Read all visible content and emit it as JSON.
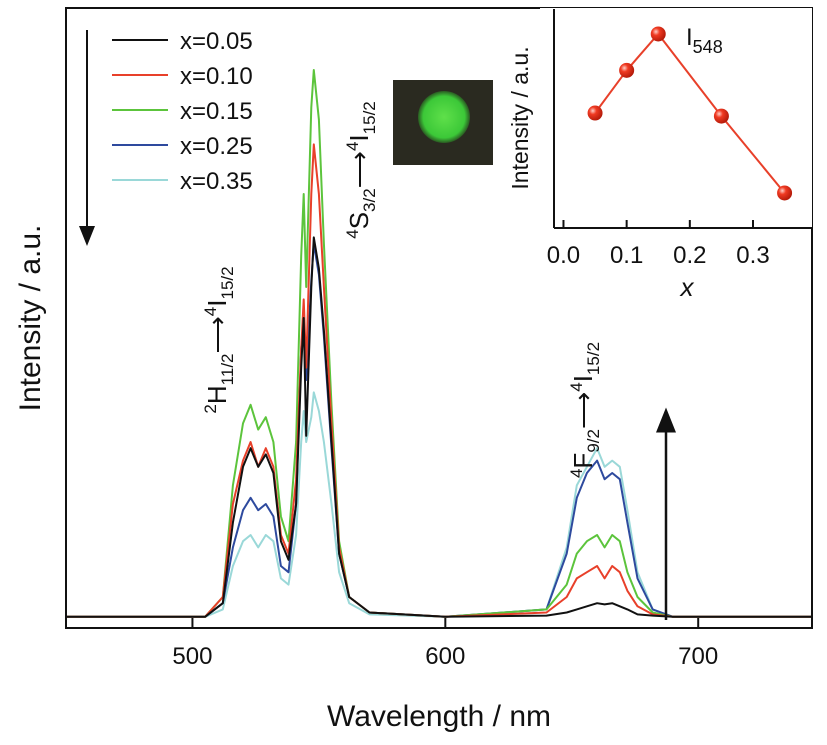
{
  "chart_data": [
    {
      "type": "line",
      "title": "",
      "xlabel": "Wavelength / nm",
      "ylabel": "Intensity / a.u.",
      "xlim": [
        450,
        745
      ],
      "ylim": [
        0,
        1
      ],
      "xticks": [
        "500",
        "600",
        "700"
      ],
      "xtick_values": [
        500,
        600,
        700
      ],
      "legend": {
        "placement": "top-left",
        "entries": [
          "x=0.05",
          "x=0.10",
          "x=0.15",
          "x=0.25",
          "x=0.35"
        ]
      },
      "x": [
        450,
        505,
        512,
        516,
        520,
        523,
        526,
        529,
        532,
        535,
        538,
        541,
        543,
        544,
        545,
        547,
        548,
        550,
        552,
        555,
        558,
        562,
        570,
        600,
        640,
        648,
        652,
        656,
        660,
        663,
        666,
        669,
        672,
        676,
        682,
        690,
        745
      ],
      "series": [
        {
          "name": "x=0.05",
          "color": "#111111",
          "values": [
            0.018,
            0.018,
            0.04,
            0.17,
            0.26,
            0.29,
            0.26,
            0.28,
            0.25,
            0.14,
            0.11,
            0.2,
            0.42,
            0.5,
            0.31,
            0.55,
            0.63,
            0.58,
            0.48,
            0.3,
            0.12,
            0.05,
            0.025,
            0.018,
            0.02,
            0.025,
            0.03,
            0.035,
            0.04,
            0.038,
            0.04,
            0.035,
            0.03,
            0.022,
            0.02,
            0.018,
            0.018
          ]
        },
        {
          "name": "x=0.10",
          "color": "#e8402a",
          "values": [
            0.018,
            0.018,
            0.05,
            0.2,
            0.27,
            0.3,
            0.26,
            0.29,
            0.26,
            0.15,
            0.12,
            0.24,
            0.45,
            0.53,
            0.42,
            0.7,
            0.78,
            0.7,
            0.55,
            0.33,
            0.13,
            0.05,
            0.025,
            0.018,
            0.025,
            0.05,
            0.08,
            0.09,
            0.1,
            0.08,
            0.1,
            0.09,
            0.06,
            0.035,
            0.022,
            0.018,
            0.018
          ]
        },
        {
          "name": "x=0.15",
          "color": "#5cc43c",
          "values": [
            0.018,
            0.018,
            0.05,
            0.23,
            0.33,
            0.36,
            0.32,
            0.34,
            0.3,
            0.18,
            0.14,
            0.3,
            0.6,
            0.7,
            0.55,
            0.84,
            0.9,
            0.82,
            0.62,
            0.36,
            0.14,
            0.05,
            0.025,
            0.018,
            0.03,
            0.07,
            0.12,
            0.14,
            0.15,
            0.13,
            0.15,
            0.14,
            0.09,
            0.05,
            0.025,
            0.018,
            0.018
          ]
        },
        {
          "name": "x=0.25",
          "color": "#2e4a9e",
          "values": [
            0.018,
            0.018,
            0.04,
            0.13,
            0.19,
            0.21,
            0.19,
            0.2,
            0.18,
            0.1,
            0.09,
            0.2,
            0.45,
            0.5,
            0.4,
            0.56,
            0.62,
            0.57,
            0.47,
            0.29,
            0.12,
            0.05,
            0.025,
            0.018,
            0.03,
            0.12,
            0.21,
            0.25,
            0.27,
            0.24,
            0.25,
            0.24,
            0.17,
            0.08,
            0.03,
            0.018,
            0.018
          ]
        },
        {
          "name": "x=0.35",
          "color": "#9ad8d8",
          "values": [
            0.018,
            0.018,
            0.03,
            0.1,
            0.14,
            0.15,
            0.13,
            0.15,
            0.14,
            0.08,
            0.07,
            0.15,
            0.3,
            0.35,
            0.3,
            0.34,
            0.38,
            0.35,
            0.3,
            0.2,
            0.09,
            0.04,
            0.022,
            0.018,
            0.03,
            0.13,
            0.23,
            0.26,
            0.29,
            0.26,
            0.27,
            0.26,
            0.19,
            0.09,
            0.03,
            0.018,
            0.018
          ]
        }
      ],
      "annotations": [
        {
          "id": "h",
          "base": "H",
          "pre": "2",
          "sub": "11/2",
          "arrow": "⟶",
          "pre2": "4",
          "base2": "I",
          "sub2": "15/2"
        },
        {
          "id": "s",
          "base": "S",
          "pre": "4",
          "sub": "3/2",
          "arrow": "⟶",
          "pre2": "4",
          "base2": "I",
          "sub2": "15/2"
        },
        {
          "id": "f",
          "base": "F",
          "pre": "4",
          "sub": "9/2",
          "arrow": "⟶",
          "pre2": "4",
          "base2": "I",
          "sub2": "15/2"
        }
      ]
    },
    {
      "type": "scatter",
      "title": "",
      "xlabel": "x",
      "ylabel": "Intensity / a.u.",
      "xlim": [
        -0.015,
        0.395
      ],
      "ylim": [
        0,
        1
      ],
      "xticks": [
        "0.0",
        "0.1",
        "0.2",
        "0.3"
      ],
      "xtick_values": [
        0,
        0.1,
        0.2,
        0.3
      ],
      "annotation": {
        "base": "I",
        "sub": "548"
      },
      "color": "#e8402a",
      "x": [
        0.05,
        0.1,
        0.15,
        0.25,
        0.35
      ],
      "values": [
        0.525,
        0.72,
        0.886,
        0.511,
        0.16
      ]
    }
  ]
}
